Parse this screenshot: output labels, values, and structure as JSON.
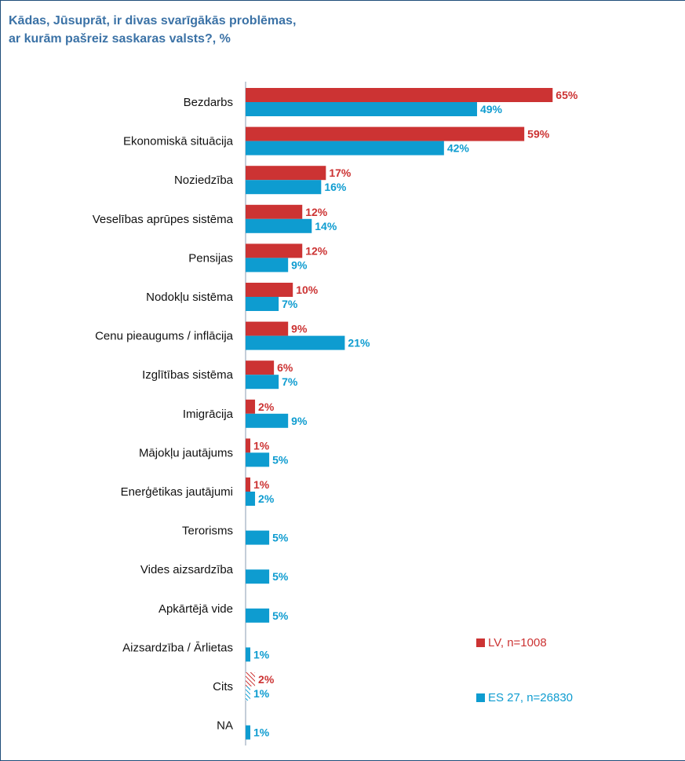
{
  "title_lines": [
    "Kādas, Jūsuprāt, ir divas svarīgākās problēmas,",
    "ar kurām pašreiz saskaras valsts?, %"
  ],
  "chart_data": {
    "type": "bar",
    "orientation": "horizontal",
    "categories": [
      "Bezdarbs",
      "Ekonomiskā situācija",
      "Noziedzība",
      "Veselības aprūpes sistēma",
      "Pensijas",
      "Nodokļu sistēma",
      "Cenu pieaugums / inflācija",
      "Izglītības sistēma",
      "Imigrācija",
      "Mājokļu jautājums",
      "Enerģētikas jautājumi",
      "Terorisms",
      "Vides aizsardzība",
      "Apkārtējā vide",
      "Aizsardzība / Ārlietas",
      "Cits",
      "NA"
    ],
    "series": [
      {
        "name": "LV, n=1008",
        "color": "#cc3333",
        "values": [
          65,
          59,
          17,
          12,
          12,
          10,
          9,
          6,
          2,
          1,
          1,
          null,
          null,
          null,
          null,
          2,
          null
        ],
        "labels": [
          "65%",
          "59%",
          "17%",
          "12%",
          "12%",
          "10%",
          "9%",
          "6%",
          "2%",
          "1%",
          "1%",
          "",
          "",
          "",
          "",
          "2%",
          ""
        ]
      },
      {
        "name": "ES 27, n=26830",
        "color": "#0e9cd0",
        "values": [
          49,
          42,
          16,
          14,
          9,
          7,
          21,
          7,
          9,
          5,
          2,
          5,
          5,
          5,
          1,
          1,
          1
        ],
        "labels": [
          "49%",
          "42%",
          "16%",
          "14%",
          "9%",
          "7%",
          "21%",
          "7%",
          "9%",
          "5%",
          "2%",
          "5%",
          "5%",
          "5%",
          "1%",
          "1%",
          "1%"
        ]
      }
    ],
    "hatched_category": "Cits",
    "xlim": [
      0,
      65
    ],
    "legend_position": "bottom-right"
  }
}
